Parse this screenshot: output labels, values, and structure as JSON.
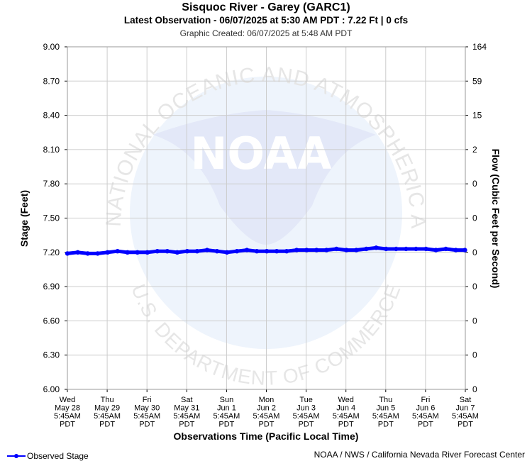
{
  "header": {
    "title": "Sisquoc River - Garey (GARC1)",
    "subtitle": "Latest Observation - 06/07/2025 at 5:30 AM PDT : 7.22 Ft | 0 cfs",
    "created": "Graphic Created: 06/07/2025 at 5:48 AM PDT"
  },
  "watermark": {
    "logo_text": "NOAA",
    "ring_text": "NATIONAL OCEANIC AND ATMOSPHERIC ADMINISTRATION",
    "bottom_text": "U.S. DEPARTMENT OF COMMERCE"
  },
  "legend": {
    "observed_label": "Observed Stage",
    "color": "#0000ff"
  },
  "footer": {
    "credit": "NOAA / NWS / California Nevada River Forecast Center"
  },
  "chart_data": {
    "type": "line",
    "xlabel": "Observations Time (Pacific Local Time)",
    "ylabel": "Stage (Feet)",
    "y2label": "Flow (Cubic Feet per Second)",
    "ylim": [
      6.0,
      9.0
    ],
    "grid": true,
    "y_ticks": [
      "9.00",
      "8.70",
      "8.40",
      "8.10",
      "7.80",
      "7.50",
      "7.20",
      "6.90",
      "6.60",
      "6.30",
      "6.00"
    ],
    "y2_ticks": [
      "164",
      "59",
      "15",
      "2",
      "0",
      "0",
      "0",
      "0",
      "0",
      "0",
      "0"
    ],
    "x_ticks": [
      [
        "Wed",
        "May 28",
        "5:45AM",
        "PDT"
      ],
      [
        "Thu",
        "May 29",
        "5:45AM",
        "PDT"
      ],
      [
        "Fri",
        "May 30",
        "5:45AM",
        "PDT"
      ],
      [
        "Sat",
        "May 31",
        "5:45AM",
        "PDT"
      ],
      [
        "Sun",
        "Jun 1",
        "5:45AM",
        "PDT"
      ],
      [
        "Mon",
        "Jun 2",
        "5:45AM",
        "PDT"
      ],
      [
        "Tue",
        "Jun 3",
        "5:45AM",
        "PDT"
      ],
      [
        "Wed",
        "Jun 4",
        "5:45AM",
        "PDT"
      ],
      [
        "Thu",
        "Jun 5",
        "5:45AM",
        "PDT"
      ],
      [
        "Fri",
        "Jun 6",
        "5:45AM",
        "PDT"
      ],
      [
        "Sat",
        "Jun 7",
        "5:45AM",
        "PDT"
      ]
    ],
    "series": [
      {
        "name": "Observed Stage",
        "color": "#0000ff",
        "x": [
          "2025-05-28 05:45",
          "2025-05-28 12:00",
          "2025-05-28 18:00",
          "2025-05-29 00:00",
          "2025-05-29 06:00",
          "2025-05-29 12:00",
          "2025-05-29 18:00",
          "2025-05-30 00:00",
          "2025-05-30 06:00",
          "2025-05-30 12:00",
          "2025-05-30 18:00",
          "2025-05-31 00:00",
          "2025-05-31 06:00",
          "2025-05-31 12:00",
          "2025-05-31 18:00",
          "2025-06-01 00:00",
          "2025-06-01 06:00",
          "2025-06-01 12:00",
          "2025-06-01 18:00",
          "2025-06-02 00:00",
          "2025-06-02 06:00",
          "2025-06-02 12:00",
          "2025-06-02 18:00",
          "2025-06-03 00:00",
          "2025-06-03 06:00",
          "2025-06-03 12:00",
          "2025-06-03 18:00",
          "2025-06-04 00:00",
          "2025-06-04 06:00",
          "2025-06-04 12:00",
          "2025-06-04 18:00",
          "2025-06-05 00:00",
          "2025-06-05 06:00",
          "2025-06-05 12:00",
          "2025-06-05 18:00",
          "2025-06-06 00:00",
          "2025-06-06 06:00",
          "2025-06-06 12:00",
          "2025-06-06 18:00",
          "2025-06-07 00:00",
          "2025-06-07 05:30"
        ],
        "y": [
          7.19,
          7.2,
          7.19,
          7.19,
          7.2,
          7.21,
          7.2,
          7.2,
          7.2,
          7.21,
          7.21,
          7.2,
          7.21,
          7.21,
          7.22,
          7.21,
          7.2,
          7.21,
          7.22,
          7.21,
          7.21,
          7.21,
          7.21,
          7.22,
          7.22,
          7.22,
          7.22,
          7.23,
          7.22,
          7.22,
          7.23,
          7.24,
          7.23,
          7.23,
          7.23,
          7.23,
          7.23,
          7.22,
          7.23,
          7.22,
          7.22
        ]
      }
    ]
  }
}
